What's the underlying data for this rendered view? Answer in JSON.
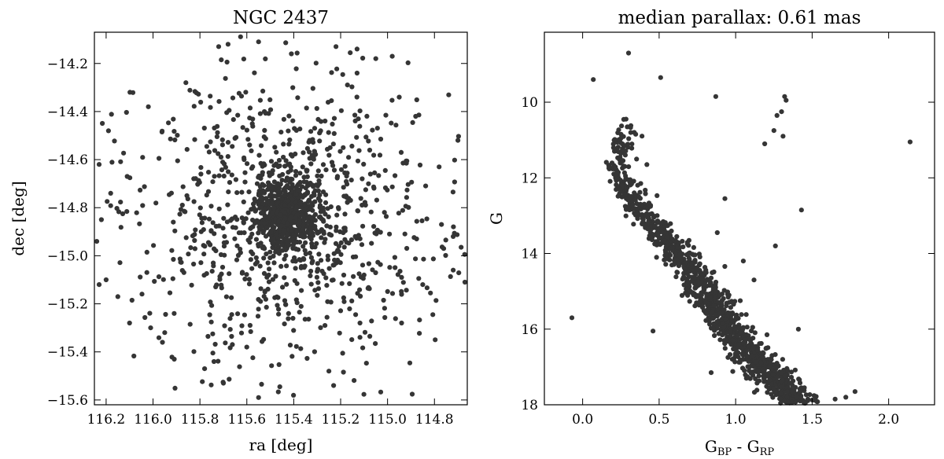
{
  "chart_data": [
    {
      "type": "scatter",
      "title": "NGC 2437",
      "xlabel": "ra [deg]",
      "ylabel": "dec [deg]",
      "xlim": [
        116.25,
        114.66
      ],
      "ylim": [
        -15.62,
        -14.07
      ],
      "x_inverted": true,
      "xticks": [
        116.2,
        116.0,
        115.8,
        115.6,
        115.4,
        115.2,
        115.0,
        114.8
      ],
      "xtick_labels": [
        "116.2",
        "116.0",
        "115.8",
        "115.6",
        "115.4",
        "115.2",
        "115.0",
        "114.8"
      ],
      "yticks": [
        -14.2,
        -14.4,
        -14.6,
        -14.8,
        -15.0,
        -15.2,
        -15.4,
        -15.6
      ],
      "ytick_labels": [
        "−14.2",
        "−14.4",
        "−14.6",
        "−14.8",
        "−15.0",
        "−15.2",
        "−15.4",
        "−15.6"
      ],
      "grid": false,
      "marker_color": "#353535",
      "distribution": {
        "n_points": 1500,
        "center": [
          115.43,
          -14.83
        ],
        "core_sigma": [
          0.07,
          0.07
        ],
        "halo_sigma": [
          0.33,
          0.3
        ]
      },
      "points": [
        [
          115.72,
          -14.13
        ],
        [
          115.68,
          -14.12
        ],
        [
          115.55,
          -14.11
        ],
        [
          115.41,
          -14.16
        ],
        [
          115.22,
          -14.13
        ],
        [
          115.13,
          -14.14
        ],
        [
          115.05,
          -14.18
        ],
        [
          114.98,
          -14.17
        ],
        [
          116.02,
          -14.38
        ],
        [
          115.86,
          -14.28
        ],
        [
          115.13,
          -14.24
        ],
        [
          114.95,
          -14.34
        ],
        [
          114.88,
          -14.42
        ],
        [
          114.7,
          -14.52
        ],
        [
          114.78,
          -14.63
        ],
        [
          116.19,
          -14.48
        ],
        [
          116.23,
          -14.62
        ],
        [
          116.22,
          -14.85
        ],
        [
          116.24,
          -14.94
        ],
        [
          116.2,
          -15.1
        ],
        [
          116.23,
          -15.12
        ],
        [
          116.15,
          -15.17
        ],
        [
          116.1,
          -15.28
        ],
        [
          116.01,
          -15.3
        ],
        [
          115.91,
          -15.24
        ],
        [
          115.78,
          -15.47
        ],
        [
          115.74,
          -15.44
        ],
        [
          115.7,
          -15.53
        ],
        [
          115.55,
          -15.59
        ],
        [
          115.25,
          -15.48
        ],
        [
          115.23,
          -15.54
        ],
        [
          114.94,
          -15.28
        ],
        [
          114.85,
          -15.12
        ],
        [
          114.72,
          -15.06
        ],
        [
          114.67,
          -15.11
        ],
        [
          114.72,
          -14.92
        ],
        [
          114.77,
          -14.87
        ],
        [
          114.66,
          -14.78
        ],
        [
          116.11,
          -14.67
        ],
        [
          115.96,
          -15.36
        ]
      ]
    },
    {
      "type": "scatter",
      "title": "median parallax: 0.61 mas",
      "xlabel_base": "G",
      "xlabel_sub1": "BP",
      "xlabel_mid": " - G",
      "xlabel_sub2": "RP",
      "ylabel": "G",
      "xlim": [
        -0.25,
        2.3
      ],
      "ylim": [
        18.0,
        8.15
      ],
      "y_inverted": true,
      "xticks": [
        0.0,
        0.5,
        1.0,
        1.5,
        2.0
      ],
      "xtick_labels": [
        "0.0",
        "0.5",
        "1.0",
        "1.5",
        "2.0"
      ],
      "yticks": [
        10,
        12,
        14,
        16,
        18
      ],
      "ytick_labels": [
        "10",
        "12",
        "14",
        "16",
        "18"
      ],
      "grid": false,
      "marker_color": "#353535",
      "main_sequence": {
        "n_points": 1300,
        "ridge": [
          [
            10.3,
            0.28
          ],
          [
            11.0,
            0.25
          ],
          [
            11.8,
            0.22
          ],
          [
            12.5,
            0.3
          ],
          [
            13.2,
            0.45
          ],
          [
            14.0,
            0.62
          ],
          [
            14.7,
            0.75
          ],
          [
            15.3,
            0.85
          ],
          [
            16.0,
            0.96
          ],
          [
            16.7,
            1.1
          ],
          [
            17.3,
            1.25
          ],
          [
            18.0,
            1.42
          ]
        ]
      },
      "outliers": [
        [
          0.3,
          8.7
        ],
        [
          0.07,
          9.4
        ],
        [
          0.51,
          9.35
        ],
        [
          0.87,
          9.85
        ],
        [
          1.32,
          9.85
        ],
        [
          1.33,
          9.95
        ],
        [
          1.3,
          10.25
        ],
        [
          1.27,
          10.35
        ],
        [
          1.25,
          10.75
        ],
        [
          1.19,
          11.1
        ],
        [
          1.31,
          10.9
        ],
        [
          2.14,
          11.05
        ],
        [
          0.93,
          12.55
        ],
        [
          1.43,
          12.85
        ],
        [
          0.88,
          13.45
        ],
        [
          1.26,
          13.8
        ],
        [
          1.05,
          14.2
        ],
        [
          1.12,
          14.7
        ],
        [
          -0.07,
          15.7
        ],
        [
          0.46,
          16.05
        ],
        [
          1.41,
          16.0
        ],
        [
          1.78,
          17.65
        ],
        [
          1.72,
          17.8
        ],
        [
          1.65,
          17.85
        ],
        [
          0.84,
          17.15
        ],
        [
          0.95,
          16.75
        ],
        [
          0.38,
          12.15
        ],
        [
          0.42,
          11.65
        ]
      ]
    }
  ]
}
